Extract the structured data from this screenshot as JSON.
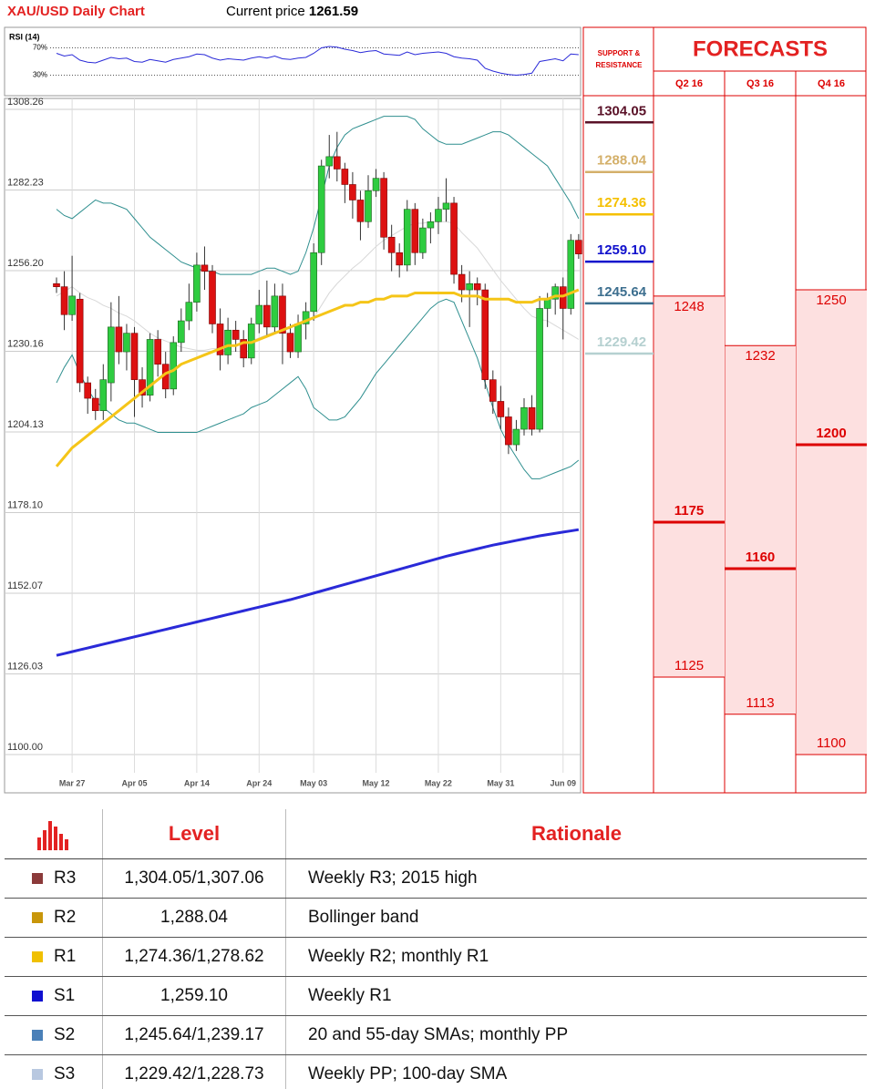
{
  "header": {
    "title": "XAU/USD Daily Chart",
    "price_label": "Current price",
    "price": 1261.59
  },
  "chart_data": [
    {
      "type": "line",
      "title": "RSI (14)",
      "color": "#2a2ad8",
      "ylim": [
        0,
        100
      ],
      "yticks": [
        {
          "value": 70,
          "label": "70%"
        },
        {
          "value": 30,
          "label": "30%"
        }
      ],
      "values": [
        62,
        58,
        60,
        52,
        49,
        48,
        52,
        56,
        54,
        55,
        50,
        49,
        53,
        51,
        49,
        53,
        55,
        57,
        61,
        60,
        55,
        52,
        54,
        53,
        52,
        55,
        57,
        55,
        58,
        54,
        53,
        55,
        56,
        62,
        70,
        72,
        71,
        68,
        66,
        63,
        65,
        66,
        61,
        60,
        59,
        64,
        60,
        62,
        63,
        64,
        62,
        57,
        55,
        54,
        52,
        40,
        36,
        33,
        31,
        30,
        31,
        33,
        50,
        52,
        54,
        51,
        61,
        60
      ]
    },
    {
      "type": "candlestick",
      "up_color": "#2ecc40",
      "down_color": "#dd1111",
      "grid": true,
      "ylim": [
        1100,
        1308.26
      ],
      "yticks": [
        {
          "value": 1100,
          "label": "1100.00"
        },
        1126.03,
        1152.07,
        {
          "value": 1178.1,
          "label": "1178.10"
        },
        1204.13,
        1230.16,
        {
          "value": 1256.2,
          "label": "1256.20"
        },
        1282.23,
        1308.26
      ],
      "categories": [
        null,
        null,
        "Mar 27",
        null,
        null,
        null,
        null,
        null,
        null,
        null,
        "Apr 05",
        null,
        null,
        null,
        null,
        null,
        null,
        null,
        "Apr 14",
        null,
        null,
        null,
        null,
        null,
        null,
        null,
        "Apr 24",
        null,
        null,
        null,
        null,
        null,
        null,
        "May 03",
        null,
        null,
        null,
        null,
        null,
        null,
        null,
        "May 12",
        null,
        null,
        null,
        null,
        null,
        null,
        null,
        "May 22",
        null,
        null,
        null,
        null,
        null,
        null,
        null,
        "May 31",
        null,
        null,
        null,
        null,
        null,
        null,
        null,
        "Jun 09",
        null,
        null
      ],
      "open": [
        1252,
        1251,
        1242,
        1247,
        1220,
        1215,
        1211,
        1220,
        1238,
        1230,
        1236,
        1221,
        1216,
        1234,
        1226,
        1218,
        1233,
        1240,
        1246,
        1258,
        1256,
        1239,
        1229,
        1237,
        1234,
        1228,
        1239,
        1245,
        1238,
        1248,
        1236,
        1230,
        1239,
        1243,
        1262,
        1290,
        1293,
        1289,
        1284,
        1279,
        1272,
        1282,
        1286,
        1267,
        1262,
        1258,
        1276,
        1262,
        1270,
        1272,
        1276,
        1278,
        1255,
        1250,
        1252,
        1250,
        1221,
        1214,
        1209,
        1200,
        1205,
        1212,
        1205,
        1244,
        1247,
        1251,
        1244,
        1266
      ],
      "high": [
        1254,
        1256,
        1261,
        1249,
        1222,
        1218,
        1226,
        1246,
        1248,
        1239,
        1238,
        1225,
        1236,
        1237,
        1230,
        1235,
        1244,
        1252,
        1262,
        1264,
        1258,
        1244,
        1241,
        1240,
        1237,
        1241,
        1250,
        1253,
        1252,
        1252,
        1239,
        1242,
        1246,
        1265,
        1292,
        1300,
        1301,
        1291,
        1288,
        1282,
        1287,
        1289,
        1288,
        1271,
        1265,
        1279,
        1278,
        1273,
        1275,
        1280,
        1286,
        1280,
        1258,
        1256,
        1254,
        1252,
        1224,
        1219,
        1212,
        1208,
        1215,
        1216,
        1248,
        1249,
        1252,
        1254,
        1268,
        1268
      ],
      "low": [
        1249,
        1237,
        1240,
        1217,
        1210,
        1208,
        1208,
        1214,
        1226,
        1224,
        1209,
        1212,
        1214,
        1222,
        1215,
        1216,
        1230,
        1237,
        1243,
        1250,
        1236,
        1224,
        1226,
        1230,
        1225,
        1226,
        1236,
        1235,
        1236,
        1226,
        1228,
        1228,
        1234,
        1240,
        1258,
        1286,
        1285,
        1278,
        1273,
        1266,
        1270,
        1280,
        1263,
        1256,
        1254,
        1256,
        1258,
        1260,
        1265,
        1268,
        1272,
        1252,
        1246,
        1238,
        1245,
        1218,
        1210,
        1205,
        1197,
        1198,
        1203,
        1203,
        1204,
        1238,
        1242,
        1234,
        1242,
        1260
      ],
      "close": [
        1251,
        1242,
        1248,
        1220,
        1215,
        1211,
        1221,
        1238,
        1230,
        1236,
        1221,
        1216,
        1234,
        1226,
        1218,
        1233,
        1240,
        1246,
        1258,
        1256,
        1239,
        1229,
        1237,
        1234,
        1228,
        1239,
        1245,
        1238,
        1248,
        1236,
        1230,
        1239,
        1243,
        1262,
        1290,
        1293,
        1289,
        1284,
        1279,
        1272,
        1282,
        1286,
        1267,
        1262,
        1258,
        1276,
        1262,
        1270,
        1272,
        1276,
        1278,
        1255,
        1250,
        1252,
        1250,
        1221,
        1214,
        1209,
        1200,
        1205,
        1212,
        1205,
        1244,
        1247,
        1251,
        1244,
        1266,
        1261.59
      ],
      "overlays": [
        {
          "color": "#f5c518",
          "values": [
            1193,
            1196,
            1199,
            1201,
            1203,
            1205,
            1207,
            1209,
            1211,
            1213,
            1215,
            1217,
            1219,
            1221,
            1223,
            1224,
            1226,
            1227,
            1228,
            1229,
            1230,
            1231,
            1232,
            1232,
            1233,
            1233,
            1234,
            1235,
            1236,
            1237,
            1238,
            1239,
            1240,
            1241,
            1242,
            1243,
            1244,
            1245,
            1245,
            1246,
            1246,
            1247,
            1247,
            1248,
            1248,
            1248,
            1249,
            1249,
            1249,
            1249,
            1249,
            1249,
            1248,
            1248,
            1248,
            1247,
            1247,
            1247,
            1247,
            1246,
            1246,
            1246,
            1247,
            1247,
            1248,
            1248,
            1249,
            1250
          ]
        },
        {
          "color": "#2a2ad8",
          "values": [
            1132,
            1132.6,
            1133.2,
            1133.8,
            1134.4,
            1135,
            1135.6,
            1136.2,
            1136.8,
            1137.4,
            1138,
            1138.6,
            1139.2,
            1139.8,
            1140.4,
            1141,
            1141.6,
            1142.2,
            1142.8,
            1143.4,
            1144,
            1144.6,
            1145.2,
            1145.8,
            1146.4,
            1147,
            1147.6,
            1148.2,
            1148.8,
            1149.4,
            1150,
            1150.7,
            1151.4,
            1152.1,
            1152.8,
            1153.5,
            1154.2,
            1154.9,
            1155.6,
            1156.3,
            1157,
            1157.7,
            1158.4,
            1159.1,
            1159.8,
            1160.5,
            1161.2,
            1161.9,
            1162.6,
            1163.3,
            1164,
            1164.6,
            1165.2,
            1165.8,
            1166.4,
            1167,
            1167.6,
            1168.1,
            1168.6,
            1169.1,
            1169.6,
            1170.1,
            1170.6,
            1171,
            1171.4,
            1171.8,
            1172.2,
            1172.6
          ]
        },
        {
          "color": "#2f8f8f",
          "values": [
            1276,
            1274,
            1273,
            1275,
            1277,
            1279,
            1278,
            1278,
            1277,
            1276,
            1273,
            1270,
            1267,
            1265,
            1263,
            1261,
            1259,
            1258,
            1257,
            1256,
            1256,
            1255,
            1255,
            1255,
            1255,
            1255,
            1256,
            1257,
            1257,
            1256,
            1255,
            1256,
            1262,
            1270,
            1280,
            1290,
            1296,
            1300,
            1302,
            1303,
            1304,
            1305,
            1306,
            1306,
            1306,
            1306,
            1305,
            1302,
            1300,
            1298,
            1297,
            1297,
            1297,
            1298,
            1299,
            1300,
            1301,
            1301,
            1300,
            1298,
            1296,
            1294,
            1292,
            1290,
            1286,
            1282,
            1278,
            1273
          ]
        },
        {
          "color": "#2f8f8f",
          "values": [
            1220,
            1225,
            1229,
            1223,
            1218,
            1214,
            1212,
            1210,
            1208,
            1207,
            1207,
            1206,
            1205,
            1204,
            1204,
            1204,
            1204,
            1204,
            1204,
            1205,
            1206,
            1207,
            1208,
            1209,
            1210,
            1212,
            1213,
            1214,
            1216,
            1218,
            1220,
            1222,
            1218,
            1212,
            1210,
            1208,
            1208,
            1209,
            1212,
            1215,
            1219,
            1223,
            1226,
            1229,
            1232,
            1235,
            1238,
            1241,
            1244,
            1246,
            1247,
            1246,
            1240,
            1234,
            1228,
            1220,
            1212,
            1205,
            1200,
            1196,
            1192,
            1189,
            1189,
            1190,
            1191,
            1192,
            1193,
            1195
          ]
        },
        {
          "color": "#d8d8d8",
          "values": [
            1248,
            1249.5,
            1251,
            1249,
            1247.5,
            1246.5,
            1245,
            1244,
            1242.5,
            1241.5,
            1240,
            1238,
            1236,
            1234.5,
            1233.5,
            1232.5,
            1231.5,
            1231,
            1230.5,
            1230.5,
            1231,
            1231,
            1231.5,
            1232,
            1232.5,
            1233.5,
            1234.5,
            1235.5,
            1236.5,
            1237,
            1237.5,
            1239,
            1240,
            1241,
            1245,
            1249,
            1252,
            1254.5,
            1257,
            1259,
            1261.5,
            1264,
            1266,
            1267.5,
            1269,
            1270.5,
            1271.5,
            1271.5,
            1272,
            1272,
            1272,
            1271.5,
            1268.5,
            1266,
            1263.5,
            1260,
            1256.5,
            1253,
            1250,
            1247,
            1244,
            1241.5,
            1240.5,
            1240,
            1238.5,
            1237,
            1235.5,
            1234
          ]
        }
      ]
    }
  ],
  "levels": {
    "title": "SUPPORT & RESISTANCE",
    "items": [
      {
        "value": 1304.05,
        "color": "#5a1228"
      },
      {
        "value": 1288.04,
        "color": "#d4b06a"
      },
      {
        "value": 1274.36,
        "color": "#f5c000"
      },
      {
        "value": 1259.1,
        "label": "1259.10",
        "color": "#1010cc"
      },
      {
        "value": 1245.64,
        "color": "#3d6f8f"
      },
      {
        "value": 1229.42,
        "color": "#b5d0d0"
      }
    ]
  },
  "forecasts": {
    "title": "FORECASTS",
    "columns": [
      {
        "label": "Q2 16",
        "high": 1248,
        "mid": 1175,
        "low": 1125
      },
      {
        "label": "Q3 16",
        "high": 1232,
        "mid": 1160,
        "low": 1113
      },
      {
        "label": "Q4 16",
        "high": 1250,
        "mid": 1200,
        "low": 1100
      }
    ]
  },
  "table": {
    "header": {
      "level": "Level",
      "rationale": "Rationale"
    },
    "rows": [
      {
        "code": "R3",
        "color": "#8b3a3a",
        "level": "1,304.05/1,307.06",
        "rationale": "Weekly R3; 2015 high"
      },
      {
        "code": "R2",
        "color": "#c8960a",
        "level": "1,288.04",
        "rationale": "Bollinger band"
      },
      {
        "code": "R1",
        "color": "#f0c000",
        "level": "1,274.36/1,278.62",
        "rationale": "Weekly R2; monthly R1"
      },
      {
        "code": "S1",
        "color": "#1010d0",
        "level": "1,259.10",
        "rationale": "Weekly R1"
      },
      {
        "code": "S2",
        "color": "#4a80b8",
        "level": "1,245.64/1,239.17",
        "rationale": "20 and 55-day SMAs; monthly PP"
      },
      {
        "code": "S3",
        "color": "#b8c8e0",
        "level": "1,229.42/1,228.73",
        "rationale": "Weekly PP; 100-day SMA"
      }
    ]
  }
}
